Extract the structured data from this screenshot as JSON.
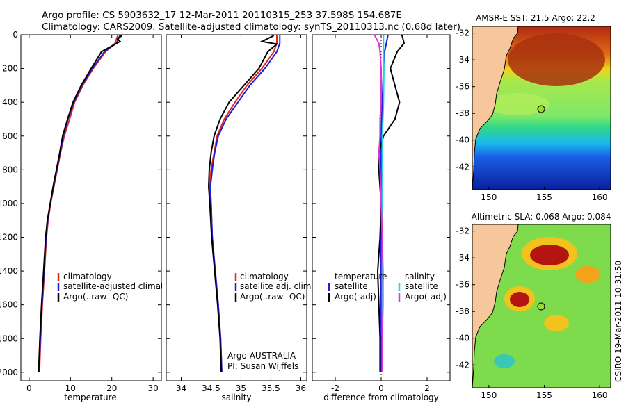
{
  "header": {
    "line1": "Argo profile: CS 5903632_17 12-Mar-2011 20110315_253 37.598S 154.687E",
    "line2": "Climatology: CARS2009. Satellite-adjusted climatology: synTS_20110313.nc (0.68d later)"
  },
  "credit": "CSIRO 19-Mar-2011 10:31:50",
  "colors": {
    "climatology": "#e0261e",
    "satellite": "#1f1fd9",
    "argo": "#000000",
    "sat_salinity": "#22d3e6",
    "argo_salinity_adj": "#e033d6",
    "land": "#f5c79b"
  },
  "chart_data": [
    {
      "type": "line",
      "name": "temperature-profile",
      "xlabel": "temperature",
      "xlim": [
        -2,
        32
      ],
      "ylim": [
        2050,
        0
      ],
      "xticks": [
        0,
        10,
        20,
        30
      ],
      "yticks": [
        0,
        200,
        400,
        600,
        800,
        1000,
        1200,
        1400,
        1600,
        1800,
        2000
      ],
      "legend": [
        "climatology",
        "satellite-adjusted climatology",
        "Argo(..raw -QC)"
      ],
      "series": [
        {
          "name": "climatology",
          "color": "#e0261e",
          "points": [
            [
              21.5,
              0
            ],
            [
              20.8,
              50
            ],
            [
              18.5,
              100
            ],
            [
              15.5,
              200
            ],
            [
              13,
              300
            ],
            [
              11,
              400
            ],
            [
              9.8,
              500
            ],
            [
              8.5,
              600
            ],
            [
              7.6,
              700
            ],
            [
              6.8,
              800
            ],
            [
              6,
              900
            ],
            [
              5.2,
              1000
            ],
            [
              4.6,
              1100
            ],
            [
              4.2,
              1200
            ],
            [
              3.7,
              1400
            ],
            [
              3.2,
              1600
            ],
            [
              2.8,
              1800
            ],
            [
              2.5,
              2000
            ]
          ]
        },
        {
          "name": "satellite-adjusted climatology",
          "color": "#1f1fd9",
          "points": [
            [
              22,
              0
            ],
            [
              21.2,
              50
            ],
            [
              18.2,
              100
            ],
            [
              15.3,
              200
            ],
            [
              12.8,
              300
            ],
            [
              10.8,
              400
            ],
            [
              9.4,
              500
            ],
            [
              8.3,
              600
            ],
            [
              7.5,
              700
            ],
            [
              6.7,
              800
            ],
            [
              5.9,
              900
            ],
            [
              5.1,
              1000
            ],
            [
              4.5,
              1100
            ],
            [
              4.1,
              1200
            ],
            [
              3.6,
              1400
            ],
            [
              3.1,
              1600
            ],
            [
              2.7,
              1800
            ],
            [
              2.4,
              2000
            ]
          ]
        },
        {
          "name": "Argo(..raw -QC)",
          "color": "#000000",
          "points": [
            [
              22.4,
              5
            ],
            [
              21.4,
              25
            ],
            [
              22,
              40
            ],
            [
              20.5,
              60
            ],
            [
              17.5,
              100
            ],
            [
              15,
              200
            ],
            [
              12.6,
              300
            ],
            [
              10.6,
              400
            ],
            [
              9.3,
              500
            ],
            [
              8.1,
              600
            ],
            [
              7.4,
              700
            ],
            [
              6.6,
              800
            ],
            [
              5.8,
              900
            ],
            [
              5.1,
              1000
            ],
            [
              4.4,
              1100
            ],
            [
              4,
              1200
            ],
            [
              3.5,
              1400
            ],
            [
              3,
              1600
            ],
            [
              2.6,
              1800
            ],
            [
              2.3,
              2000
            ]
          ]
        }
      ]
    },
    {
      "type": "line",
      "name": "salinity-profile",
      "xlabel": "salinity",
      "xlim": [
        33.75,
        36.1
      ],
      "ylim": [
        2050,
        0
      ],
      "xticks": [
        34,
        34.5,
        35,
        35.5,
        36
      ],
      "legend": [
        "climatology",
        "satellite adj. clim.",
        "Argo(..raw -QC)"
      ],
      "annotation": [
        "Argo AUSTRALIA",
        "PI: Susan Wijffels"
      ],
      "series": [
        {
          "name": "climatology",
          "color": "#e0261e",
          "points": [
            [
              35.6,
              0
            ],
            [
              35.6,
              50
            ],
            [
              35.55,
              100
            ],
            [
              35.35,
              200
            ],
            [
              35.1,
              300
            ],
            [
              34.9,
              400
            ],
            [
              34.72,
              500
            ],
            [
              34.6,
              600
            ],
            [
              34.55,
              700
            ],
            [
              34.5,
              800
            ],
            [
              34.48,
              900
            ],
            [
              34.5,
              1000
            ],
            [
              34.52,
              1200
            ],
            [
              34.57,
              1400
            ],
            [
              34.62,
              1600
            ],
            [
              34.66,
              1800
            ],
            [
              34.68,
              2000
            ]
          ]
        },
        {
          "name": "satellite adj. clim.",
          "color": "#1f1fd9",
          "points": [
            [
              35.65,
              0
            ],
            [
              35.65,
              50
            ],
            [
              35.6,
              100
            ],
            [
              35.4,
              200
            ],
            [
              35.15,
              300
            ],
            [
              34.95,
              400
            ],
            [
              34.75,
              500
            ],
            [
              34.62,
              600
            ],
            [
              34.56,
              700
            ],
            [
              34.52,
              800
            ],
            [
              34.49,
              900
            ],
            [
              34.5,
              1000
            ],
            [
              34.52,
              1200
            ],
            [
              34.57,
              1400
            ],
            [
              34.62,
              1600
            ],
            [
              34.66,
              1800
            ],
            [
              34.68,
              2000
            ]
          ]
        },
        {
          "name": "Argo(..raw -QC)",
          "color": "#000000",
          "points": [
            [
              35.55,
              5
            ],
            [
              35.35,
              40
            ],
            [
              35.6,
              55
            ],
            [
              35.45,
              100
            ],
            [
              35.3,
              200
            ],
            [
              35.05,
              300
            ],
            [
              34.8,
              400
            ],
            [
              34.65,
              500
            ],
            [
              34.55,
              600
            ],
            [
              34.5,
              700
            ],
            [
              34.47,
              800
            ],
            [
              34.46,
              900
            ],
            [
              34.48,
              1000
            ],
            [
              34.51,
              1200
            ],
            [
              34.56,
              1400
            ],
            [
              34.61,
              1600
            ],
            [
              34.65,
              1800
            ],
            [
              34.67,
              2000
            ]
          ]
        }
      ]
    },
    {
      "type": "line",
      "name": "difference-profile",
      "xlabel": "difference from climatology",
      "xlim": [
        -3,
        3
      ],
      "ylim": [
        2050,
        0
      ],
      "xticks": [
        -2,
        0,
        2
      ],
      "legend_temperature_title": "temperature",
      "legend_salinity_title": "salinity",
      "legend_temperature": [
        "satellite",
        "Argo(-adj)"
      ],
      "legend_salinity": [
        "satellite",
        "Argo(-adj)"
      ],
      "series": [
        {
          "name": "temperature satellite",
          "color": "#1f1fd9",
          "points": [
            [
              0.3,
              0
            ],
            [
              0.15,
              100
            ],
            [
              0.1,
              200
            ],
            [
              0.05,
              400
            ],
            [
              0,
              600
            ],
            [
              0,
              800
            ],
            [
              0,
              1000
            ],
            [
              0,
              1200
            ],
            [
              0,
              1400
            ],
            [
              0,
              1600
            ],
            [
              0,
              1800
            ],
            [
              0,
              2000
            ]
          ]
        },
        {
          "name": "temperature Argo(-adj)",
          "color": "#000000",
          "points": [
            [
              0.9,
              0
            ],
            [
              1,
              50
            ],
            [
              0.7,
              100
            ],
            [
              0.4,
              200
            ],
            [
              0.6,
              300
            ],
            [
              0.8,
              400
            ],
            [
              0.6,
              500
            ],
            [
              0.1,
              600
            ],
            [
              -0.1,
              700
            ],
            [
              -0.1,
              800
            ],
            [
              0,
              1000
            ],
            [
              -0.05,
              1200
            ],
            [
              -0.15,
              1400
            ],
            [
              -0.1,
              1600
            ],
            [
              -0.05,
              1800
            ],
            [
              -0.05,
              2000
            ]
          ]
        },
        {
          "name": "salinity satellite",
          "color": "#22d3e6",
          "points": [
            [
              0.1,
              0
            ],
            [
              0.1,
              100
            ],
            [
              0.12,
              200
            ],
            [
              0.1,
              400
            ],
            [
              0.05,
              600
            ],
            [
              0.05,
              800
            ],
            [
              0.05,
              1000
            ],
            [
              0.05,
              1200
            ],
            [
              0.05,
              1400
            ],
            [
              0.05,
              1600
            ],
            [
              0.05,
              1800
            ],
            [
              0.05,
              2000
            ]
          ]
        },
        {
          "name": "salinity Argo(-adj)",
          "color": "#e033d6",
          "points": [
            [
              -0.3,
              0
            ],
            [
              -0.1,
              50
            ],
            [
              -0.05,
              100
            ],
            [
              0,
              200
            ],
            [
              0,
              300
            ],
            [
              0,
              400
            ],
            [
              -0.05,
              500
            ],
            [
              -0.05,
              600
            ],
            [
              -0.1,
              700
            ],
            [
              -0.05,
              800
            ],
            [
              0,
              1000
            ],
            [
              0.05,
              1200
            ],
            [
              0.08,
              1400
            ],
            [
              0.08,
              1600
            ],
            [
              0.05,
              1800
            ],
            [
              0.05,
              2000
            ]
          ]
        }
      ]
    },
    {
      "type": "heatmap",
      "name": "sst-map",
      "title": "AMSR-E SST: 21.5 Argo: 22.2",
      "xlim": [
        148.5,
        161
      ],
      "ylim": [
        -43.7,
        -31.5
      ],
      "xticks": [
        150,
        155,
        160
      ],
      "yticks": [
        -32,
        -34,
        -36,
        -38,
        -40,
        -42
      ],
      "marker": {
        "lon": 154.687,
        "lat": -37.598
      }
    },
    {
      "type": "heatmap",
      "name": "sla-map",
      "title": "Altimetric SLA: 0.068 Argo: 0.084",
      "xlim": [
        148.5,
        161
      ],
      "ylim": [
        -43.7,
        -31.5
      ],
      "xticks": [
        150,
        155,
        160
      ],
      "yticks": [
        -32,
        -34,
        -36,
        -38,
        -40,
        -42
      ],
      "marker": {
        "lon": 154.687,
        "lat": -37.598
      }
    }
  ]
}
